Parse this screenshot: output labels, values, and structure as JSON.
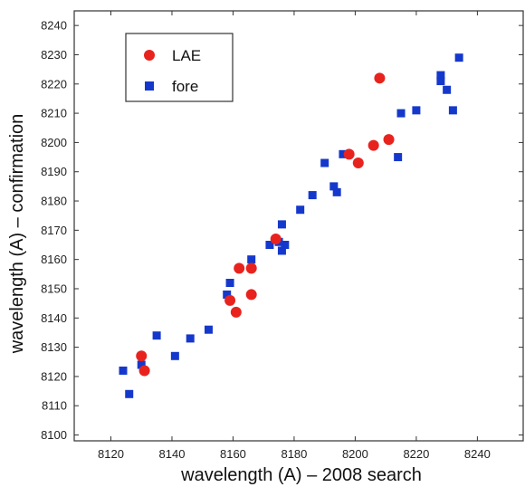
{
  "chart_data": {
    "type": "scatter",
    "title": "",
    "xlabel": "wavelength (A) – 2008 search",
    "ylabel": "wavelength (A) – confirmation",
    "xlim": [
      8108,
      8255
    ],
    "ylim": [
      8098,
      8245
    ],
    "xticks": [
      8120,
      8140,
      8160,
      8180,
      8200,
      8220,
      8240
    ],
    "yticks": [
      8100,
      8110,
      8120,
      8130,
      8140,
      8150,
      8160,
      8170,
      8180,
      8190,
      8200,
      8210,
      8220,
      8230,
      8240
    ],
    "grid": false,
    "legend_position": "top-left",
    "series": [
      {
        "name": "LAE",
        "marker": "circle",
        "color": "#e8231e",
        "points": [
          [
            8130,
            8127
          ],
          [
            8131,
            8122
          ],
          [
            8159,
            8146
          ],
          [
            8161,
            8142
          ],
          [
            8162,
            8157
          ],
          [
            8166,
            8157
          ],
          [
            8166,
            8148
          ],
          [
            8174,
            8167
          ],
          [
            8198,
            8196
          ],
          [
            8201,
            8193
          ],
          [
            8206,
            8199
          ],
          [
            8208,
            8222
          ],
          [
            8211,
            8201
          ]
        ]
      },
      {
        "name": "fore",
        "marker": "square",
        "color": "#1538cc",
        "points": [
          [
            8124,
            8122
          ],
          [
            8126,
            8114
          ],
          [
            8130,
            8124
          ],
          [
            8135,
            8134
          ],
          [
            8141,
            8127
          ],
          [
            8146,
            8133
          ],
          [
            8152,
            8136
          ],
          [
            8158,
            8148
          ],
          [
            8159,
            8152
          ],
          [
            8166,
            8160
          ],
          [
            8172,
            8165
          ],
          [
            8175,
            8166
          ],
          [
            8176,
            8172
          ],
          [
            8176,
            8163
          ],
          [
            8177,
            8165
          ],
          [
            8182,
            8177
          ],
          [
            8186,
            8182
          ],
          [
            8190,
            8193
          ],
          [
            8193,
            8185
          ],
          [
            8194,
            8183
          ],
          [
            8196,
            8196
          ],
          [
            8214,
            8195
          ],
          [
            8215,
            8210
          ],
          [
            8220,
            8211
          ],
          [
            8228,
            8223
          ],
          [
            8228,
            8221
          ],
          [
            8230,
            8218
          ],
          [
            8232,
            8211
          ],
          [
            8234,
            8229
          ]
        ]
      }
    ]
  }
}
